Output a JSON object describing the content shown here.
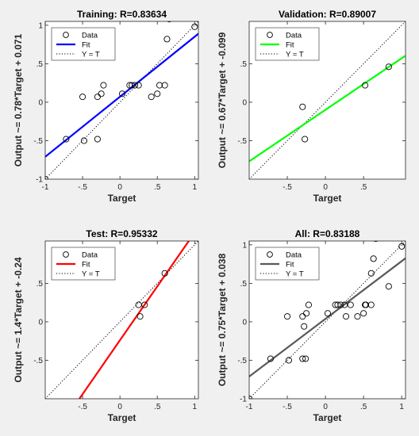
{
  "chart_data": [
    {
      "type": "scatter",
      "title": "Training: R=0.83634",
      "xlabel": "Target",
      "ylabel": "Output ~= 0.78*Target + 0.071",
      "xlim": [
        -1,
        1.05
      ],
      "ylim": [
        -1,
        1.05
      ],
      "xticks": [
        -1,
        -0.5,
        0,
        0.5,
        1
      ],
      "yticks": [
        -1,
        -0.5,
        0,
        0.5,
        1
      ],
      "fit": {
        "slope": 0.78,
        "intercept": 0.071,
        "color": "#0000ff"
      },
      "legend": {
        "position": "top-left",
        "entries": [
          "Data",
          "Fit",
          "Y = T"
        ]
      },
      "points": [
        [
          -1,
          -1
        ],
        [
          -0.72,
          -0.48
        ],
        [
          -0.5,
          0.07
        ],
        [
          -0.48,
          -0.5
        ],
        [
          -0.3,
          -0.48
        ],
        [
          -0.3,
          0.07
        ],
        [
          -0.25,
          0.11
        ],
        [
          -0.22,
          0.22
        ],
        [
          0.03,
          0.11
        ],
        [
          0.13,
          0.22
        ],
        [
          0.16,
          0.22
        ],
        [
          0.2,
          0.22
        ],
        [
          0.25,
          0.22
        ],
        [
          0.42,
          0.07
        ],
        [
          0.5,
          0.11
        ],
        [
          0.53,
          0.22
        ],
        [
          0.6,
          0.22
        ],
        [
          0.63,
          0.82
        ],
        [
          0.66,
          1.08
        ],
        [
          1,
          0.98
        ]
      ]
    },
    {
      "type": "scatter",
      "title": "Validation: R=0.89007",
      "xlabel": "Target",
      "ylabel": "Output ~= 0.67*Target + -0.099",
      "xlim": [
        -1,
        1.05
      ],
      "ylim": [
        -1,
        1.05
      ],
      "xticks": [
        -0.5,
        0,
        0.5
      ],
      "yticks": [
        -0.5,
        0,
        0.5
      ],
      "fit": {
        "slope": 0.67,
        "intercept": -0.099,
        "color": "#00ff00"
      },
      "legend": {
        "position": "top-left",
        "entries": [
          "Data",
          "Fit",
          "Y = T"
        ]
      },
      "points": [
        [
          -0.3,
          -0.06
        ],
        [
          -0.27,
          -0.48
        ],
        [
          0.52,
          0.22
        ],
        [
          0.83,
          0.46
        ]
      ]
    },
    {
      "type": "scatter",
      "title": "Test: R=0.95332",
      "xlabel": "Target",
      "ylabel": "Output ~= 1.4*Target + -0.24",
      "xlim": [
        -1,
        1.05
      ],
      "ylim": [
        -1,
        1.05
      ],
      "xticks": [
        -0.5,
        0,
        0.5,
        1
      ],
      "yticks": [
        -0.5,
        0,
        0.5
      ],
      "fit": {
        "slope": 1.4,
        "intercept": -0.24,
        "color": "#ff0000"
      },
      "legend": {
        "position": "top-left",
        "entries": [
          "Data",
          "Fit",
          "Y = T"
        ]
      },
      "points": [
        [
          0.25,
          0.22
        ],
        [
          0.27,
          0.07
        ],
        [
          0.33,
          0.22
        ],
        [
          0.6,
          0.63
        ]
      ]
    },
    {
      "type": "scatter",
      "title": "All: R=0.83188",
      "xlabel": "Target",
      "ylabel": "Output ~= 0.75*Target + 0.038",
      "xlim": [
        -1,
        1.05
      ],
      "ylim": [
        -1,
        1.05
      ],
      "xticks": [
        -1,
        -0.5,
        0,
        0.5,
        1
      ],
      "yticks": [
        -1,
        -0.5,
        0,
        0.5,
        1
      ],
      "fit": {
        "slope": 0.75,
        "intercept": 0.038,
        "color": "#595959"
      },
      "legend": {
        "position": "top-left",
        "entries": [
          "Data",
          "Fit",
          "Y = T"
        ]
      },
      "points": [
        [
          -1,
          -1
        ],
        [
          -0.72,
          -0.48
        ],
        [
          -0.5,
          0.07
        ],
        [
          -0.48,
          -0.5
        ],
        [
          -0.3,
          -0.48
        ],
        [
          -0.3,
          0.07
        ],
        [
          -0.28,
          -0.06
        ],
        [
          -0.26,
          -0.48
        ],
        [
          -0.25,
          0.11
        ],
        [
          -0.22,
          0.22
        ],
        [
          0.03,
          0.11
        ],
        [
          0.13,
          0.22
        ],
        [
          0.16,
          0.22
        ],
        [
          0.2,
          0.22
        ],
        [
          0.25,
          0.22
        ],
        [
          0.27,
          0.07
        ],
        [
          0.33,
          0.22
        ],
        [
          0.42,
          0.07
        ],
        [
          0.5,
          0.11
        ],
        [
          0.52,
          0.22
        ],
        [
          0.53,
          0.22
        ],
        [
          0.6,
          0.22
        ],
        [
          0.6,
          0.63
        ],
        [
          0.63,
          0.82
        ],
        [
          0.66,
          1.08
        ],
        [
          0.83,
          0.46
        ],
        [
          1,
          0.98
        ]
      ]
    }
  ]
}
